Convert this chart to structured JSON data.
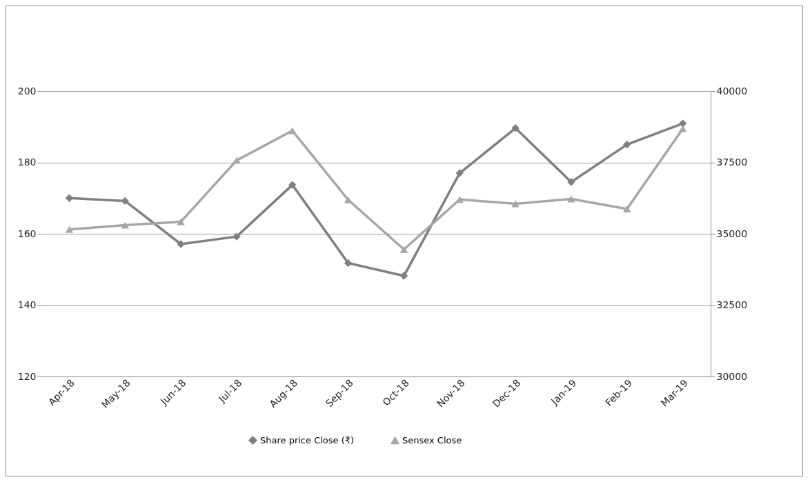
{
  "chart_data": {
    "type": "line",
    "categories": [
      "Apr-18",
      "May-18",
      "Jun-18",
      "Jul-18",
      "Aug-18",
      "Sep-18",
      "Oct-18",
      "Nov-18",
      "Dec-18",
      "Jan-19",
      "Feb-19",
      "Mar-19"
    ],
    "series": [
      {
        "name": "Share price Close (₹)",
        "color": "#7f7f7f",
        "marker": "diamond",
        "values": [
          170.0,
          169.2,
          157.1,
          159.2,
          173.7,
          151.8,
          148.2,
          177.0,
          189.6,
          174.5,
          185.0,
          190.9
        ]
      },
      {
        "name": "Sensex Close",
        "color": "#a6a6a6",
        "marker": "triangle",
        "axis": "y2",
        "values": [
          35150,
          35300,
          35420,
          37570,
          38610,
          36190,
          34450,
          36200,
          36050,
          36220,
          35870,
          38680
        ]
      }
    ],
    "ylim": [
      120,
      200
    ],
    "yticks": [
      120,
      140,
      160,
      180,
      200
    ],
    "y2lim": [
      30000,
      40000
    ],
    "y2ticks": [
      30000,
      32500,
      35000,
      37500,
      40000
    ],
    "grid": "y",
    "legend": "bottom",
    "line_style": "solid"
  }
}
